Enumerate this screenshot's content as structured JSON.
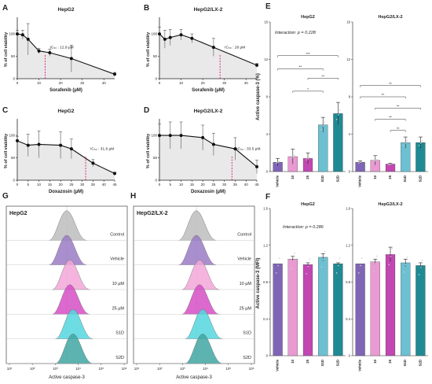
{
  "panels": {
    "A": {
      "letter": "A",
      "title": "HepG2",
      "ylabel": "% of cell viability",
      "xlabel": "Sorafenib (µM)",
      "ic50": "IC₅₀ : 12.9 µM"
    },
    "B": {
      "letter": "B",
      "title": "HepG2/LX-2",
      "ylabel": "% of cell viability",
      "xlabel": "Sorafenib (µM)",
      "ic50": "IC₅₀ : 28 µM"
    },
    "C": {
      "letter": "C",
      "title": "HepG2",
      "ylabel": "% of cell viability",
      "xlabel": "Doxazosin (µM)",
      "ic50": "IC₅₀ : 31.6 µM"
    },
    "D": {
      "letter": "D",
      "title": "HepG2/LX-2",
      "ylabel": "% of cell viability",
      "xlabel": "Doxazosin (µM)",
      "ic50": "IC₅₀ : 33.5 µM"
    },
    "E": {
      "letter": "E",
      "titles": [
        "HepG2",
        "HepG2/LX-2"
      ],
      "ylabel": "Active caspase-3 (%)",
      "interaction": "Interaction: p = 0.228"
    },
    "F": {
      "letter": "F",
      "titles": [
        "HepG2",
        "HepG2/LX-2"
      ],
      "ylabel": "Active caspase-3 (MFI)",
      "interaction": "Interaction: p = 0.286"
    },
    "G": {
      "letter": "G",
      "title": "HepG2",
      "xlabel": "Active caspase-3"
    },
    "H": {
      "letter": "H",
      "title": "HepG2/LX-2",
      "xlabel": "Active caspase-3"
    }
  },
  "chart_data": [
    {
      "type": "line",
      "panel": "A",
      "x": [
        0,
        2.5,
        5,
        10,
        15,
        25,
        45
      ],
      "y": [
        100,
        98,
        88,
        62,
        58,
        45,
        10
      ],
      "err": [
        8,
        10,
        35,
        6,
        8,
        30,
        4
      ],
      "xticks": [
        0,
        10,
        20,
        30,
        40
      ],
      "yticks": [
        0,
        50,
        100
      ],
      "xlim": [
        0,
        45
      ],
      "ylim": [
        0,
        130
      ],
      "ic50": 12.9
    },
    {
      "type": "line",
      "panel": "B",
      "x": [
        0,
        2.5,
        5,
        10,
        15,
        25,
        45
      ],
      "y": [
        100,
        88,
        92,
        98,
        90,
        70,
        30
      ],
      "err": [
        15,
        20,
        18,
        12,
        10,
        20,
        4
      ],
      "xticks": [
        0,
        10,
        20,
        30,
        40
      ],
      "yticks": [
        0,
        50,
        100
      ],
      "xlim": [
        0,
        45
      ],
      "ylim": [
        0,
        130
      ],
      "ic50": 28
    },
    {
      "type": "line",
      "panel": "C",
      "x": [
        0,
        5,
        10,
        20,
        25,
        35,
        45
      ],
      "y": [
        88,
        78,
        80,
        78,
        70,
        38,
        15
      ],
      "err": [
        10,
        25,
        30,
        30,
        22,
        8,
        3
      ],
      "xticks": [
        0,
        5,
        10,
        15,
        20,
        25,
        30,
        35,
        40,
        45
      ],
      "yticks": [
        0,
        50,
        100
      ],
      "xlim": [
        0,
        45
      ],
      "ylim": [
        0,
        130
      ],
      "ic50": 31.6
    },
    {
      "type": "line",
      "panel": "D",
      "x": [
        0,
        5,
        10,
        20,
        25,
        35,
        45
      ],
      "y": [
        100,
        100,
        100,
        95,
        80,
        70,
        30
      ],
      "err": [
        25,
        30,
        30,
        28,
        25,
        25,
        15
      ],
      "xticks": [
        0,
        5,
        10,
        15,
        20,
        25,
        30,
        35,
        40,
        45
      ],
      "yticks": [
        0,
        50,
        100
      ],
      "xlim": [
        0,
        45
      ],
      "ylim": [
        0,
        130
      ],
      "ic50": 33.5
    },
    {
      "type": "bar",
      "panel": "E-HepG2",
      "categories": [
        "Vehicle",
        "10",
        "25",
        "S1D",
        "S2D"
      ],
      "values": [
        1.0,
        1.6,
        1.4,
        5.0,
        6.2
      ],
      "err": [
        0.4,
        0.8,
        0.6,
        0.8,
        1.2
      ],
      "ylim": [
        0,
        16
      ],
      "yticks": [
        0,
        4,
        8,
        12,
        16
      ],
      "sig": [
        "***",
        "**",
        "**",
        "*"
      ]
    },
    {
      "type": "bar",
      "panel": "E-HepG2/LX-2",
      "categories": [
        "Vehicle",
        "10",
        "25",
        "S1D",
        "S2D"
      ],
      "values": [
        1.0,
        1.2,
        0.8,
        3.1,
        3.1
      ],
      "err": [
        0.15,
        0.5,
        0.1,
        0.6,
        0.6
      ],
      "ylim": [
        0,
        16
      ],
      "yticks": [
        0,
        4,
        8,
        12,
        16
      ],
      "sig": [
        "**",
        "**",
        "**",
        "**",
        "**"
      ]
    },
    {
      "type": "bar",
      "panel": "F-HepG2",
      "categories": [
        "Vehicle",
        "10",
        "25",
        "S1D",
        "S2D"
      ],
      "values": [
        1.0,
        1.05,
        0.99,
        1.07,
        1.0
      ],
      "err": [
        0,
        0.03,
        0.02,
        0.04,
        0.01
      ],
      "ylim": [
        0,
        1.6
      ],
      "yticks": [
        0.0,
        0.4,
        0.8,
        1.2,
        1.6
      ]
    },
    {
      "type": "bar",
      "panel": "F-HepG2/LX-2",
      "categories": [
        "Vehicle",
        "10",
        "25",
        "S1D",
        "S2D"
      ],
      "values": [
        1.0,
        1.02,
        1.1,
        1.01,
        0.98
      ],
      "err": [
        0,
        0.03,
        0.08,
        0.04,
        0.03
      ],
      "ylim": [
        0,
        1.6
      ],
      "yticks": [
        0.0,
        0.4,
        0.8,
        1.2,
        1.6
      ]
    },
    {
      "type": "area",
      "panel": "G",
      "series": [
        {
          "name": "Control",
          "color": "#bdbdbd"
        },
        {
          "name": "Vehicle",
          "color": "#9a7bc4"
        },
        {
          "name": "10 µM",
          "color": "#f2a7d8"
        },
        {
          "name": "25 µM",
          "color": "#d64fc4"
        },
        {
          "name": "S1D",
          "color": "#55d6de"
        },
        {
          "name": "S2D",
          "color": "#3fa6a2"
        }
      ],
      "xticks": [
        "10¹",
        "10²",
        "10³",
        "10⁴",
        "10⁵",
        "10⁶"
      ]
    },
    {
      "type": "area",
      "panel": "H",
      "series": [
        {
          "name": "Control",
          "color": "#bdbdbd"
        },
        {
          "name": "Vehicle",
          "color": "#9a7bc4"
        },
        {
          "name": "10 µM",
          "color": "#f2a7d8"
        },
        {
          "name": "25 µM",
          "color": "#d64fc4"
        },
        {
          "name": "S1D",
          "color": "#55d6de"
        },
        {
          "name": "S2D",
          "color": "#3fa6a2"
        }
      ],
      "xticks": [
        "10¹",
        "10²",
        "10³",
        "10⁴",
        "10⁵",
        "10⁶"
      ]
    }
  ],
  "colors": {
    "vehicle": "#7f65b5",
    "c10": "#e99ad2",
    "c25": "#c247b2",
    "s1d": "#6cc0d2",
    "s2d": "#1f8a93",
    "ic50": "#d81b7a",
    "fill": "#e9e9e9"
  }
}
